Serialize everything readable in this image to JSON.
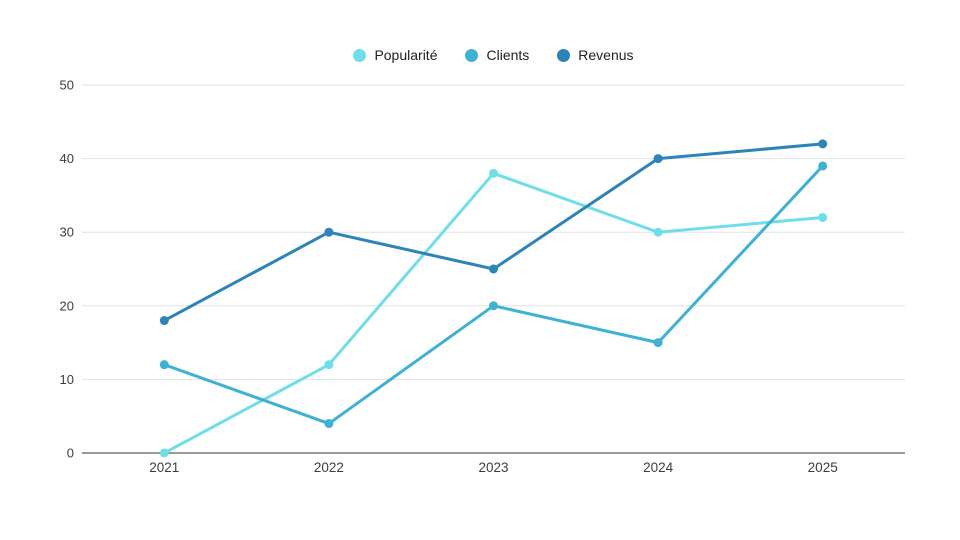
{
  "chart_data": {
    "type": "line",
    "title": "",
    "xlabel": "",
    "ylabel": "",
    "categories": [
      "2021",
      "2022",
      "2023",
      "2024",
      "2025"
    ],
    "series": [
      {
        "name": "Popularité",
        "color": "#6EDFE8",
        "values": [
          0,
          12,
          38,
          30,
          32
        ]
      },
      {
        "name": "Clients",
        "color": "#3EB2D4",
        "values": [
          12,
          4,
          20,
          15,
          39
        ]
      },
      {
        "name": "Revenus",
        "color": "#2D84BA",
        "values": [
          18,
          30,
          25,
          40,
          42
        ]
      }
    ],
    "ylim": [
      0,
      50
    ],
    "yticks": [
      0,
      10,
      20,
      30,
      40,
      50
    ],
    "grid": true,
    "legend_position": "top"
  },
  "colors": {
    "background": "#ffffff",
    "gridline": "#e2e2e2",
    "axis_line": "#9a9a9a",
    "tick_text": "#3d3d3d",
    "legend_text": "#212121"
  }
}
